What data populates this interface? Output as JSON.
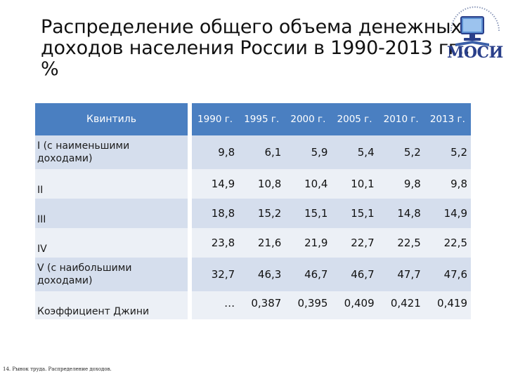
{
  "slide": {
    "title_lines": [
      "Распределение общего объема денежных",
      "доходов населения России в 1990-2013 гг.,",
      "%"
    ],
    "logo_text": "МОСИ",
    "footer": "14. Рынок труда. Распределение доходов."
  },
  "table": {
    "header_label": "Квинтиль",
    "years": [
      "1990 г.",
      "1995 г.",
      "2000 г.",
      "2005 г.",
      "2010 г.",
      "2013 г."
    ],
    "rows": [
      {
        "label": "I (с наименьшими доходами)",
        "values": [
          "9,8",
          "6,1",
          "5,9",
          "5,4",
          "5,2",
          "5,2"
        ]
      },
      {
        "label": "II",
        "values": [
          "14,9",
          "10,8",
          "10,4",
          "10,1",
          "9,8",
          "9,8"
        ]
      },
      {
        "label": "III",
        "values": [
          "18,8",
          "15,2",
          "15,1",
          "15,1",
          "14,8",
          "14,9"
        ]
      },
      {
        "label": "IV",
        "values": [
          "23,8",
          "21,6",
          "21,9",
          "22,7",
          "22,5",
          "22,5"
        ]
      },
      {
        "label": "V (с наибольшими доходами)",
        "values": [
          "32,7",
          "46,3",
          "46,7",
          "46,7",
          "47,7",
          "47,6"
        ]
      },
      {
        "label": "Коэффициент Джини",
        "values": [
          "…",
          "0,387",
          "0,395",
          "0,409",
          "0,421",
          "0,419"
        ]
      }
    ]
  },
  "colors": {
    "header_bg": "#4a7fc1",
    "row_dark": "#d5deed",
    "row_light": "#ecf0f6",
    "logo": "#2a3f8a"
  }
}
